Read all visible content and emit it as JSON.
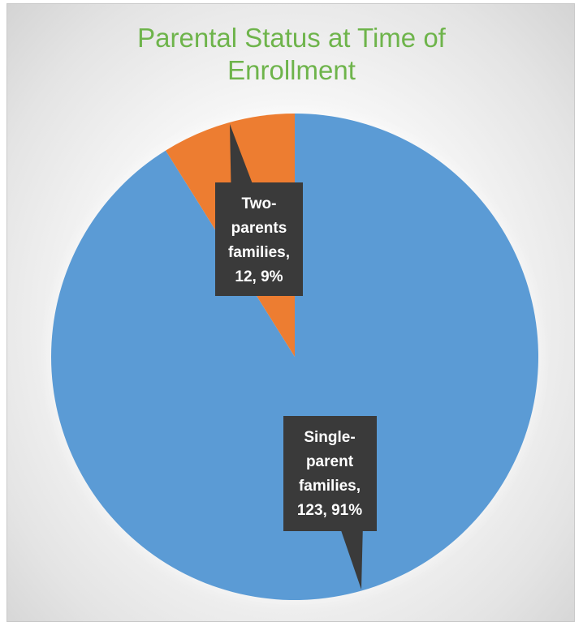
{
  "chart_data": {
    "type": "pie",
    "title": "Parental Status at Time of Enrollment",
    "title_lines": [
      "Parental Status at Time of",
      "Enrollment"
    ],
    "categories": [
      "Single-parent families",
      "Two-parents families"
    ],
    "values": [
      123,
      12
    ],
    "percents": [
      91,
      9
    ],
    "colors": [
      "#5b9bd5",
      "#ed7d31"
    ],
    "data_labels": [
      [
        "Single-",
        "parent",
        "families,",
        "123, 91%"
      ],
      [
        "Two-",
        "parents",
        "families,",
        "12, 9%"
      ]
    ],
    "start_angle": "12 o'clock, clockwise",
    "legend": "none"
  }
}
